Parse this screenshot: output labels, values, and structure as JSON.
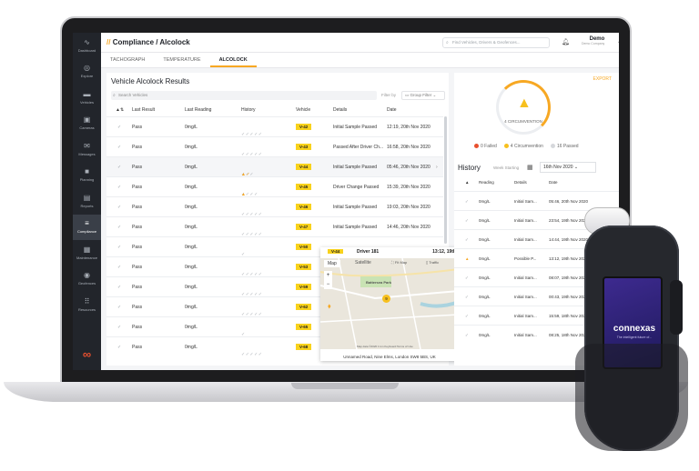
{
  "app": {
    "breadcrumb_section": "Compliance",
    "breadcrumb_page": "Alcolock",
    "search_placeholder": "Find Vehicles, Drivers & Geofences...",
    "user_name": "Demo",
    "user_company": "Demo Company"
  },
  "sidebar": {
    "items": [
      {
        "label": "Dashboard",
        "icon": "chart-line-icon"
      },
      {
        "label": "Explore",
        "icon": "compass-icon"
      },
      {
        "label": "Vehicles",
        "icon": "car-icon"
      },
      {
        "label": "Cameras",
        "icon": "camera-icon"
      },
      {
        "label": "Messages",
        "icon": "envelope-icon"
      },
      {
        "label": "Planning",
        "icon": "briefcase-icon"
      },
      {
        "label": "Reports",
        "icon": "document-icon"
      },
      {
        "label": "Compliance",
        "icon": "compliance-icon"
      },
      {
        "label": "Maintenance",
        "icon": "grid-icon"
      },
      {
        "label": "Geofences",
        "icon": "target-icon"
      },
      {
        "label": "Resources",
        "icon": "apps-icon"
      }
    ]
  },
  "tabs": [
    "TACHOGRAPH",
    "TEMPERATURE",
    "ALCOLOCK"
  ],
  "results": {
    "title": "Vehicle Alcolock Results",
    "search_placeholder": "Search Vehicles",
    "filter_label": "Filter by",
    "group_filter": "Group Filter",
    "columns": [
      "Last Result",
      "Last Reading",
      "History",
      "Vehicle",
      "Details",
      "Date"
    ],
    "rows": [
      {
        "result": "Pass",
        "reading": "0mg/L",
        "history": "✓✓✓✓✓",
        "warn": "",
        "vehicle": "V-42",
        "details": "Initial Sample Passed",
        "date": "12:19, 20th Nov 2020"
      },
      {
        "result": "Pass",
        "reading": "0mg/L",
        "history": "✓✓✓✓✓",
        "warn": "",
        "vehicle": "V-43",
        "details": "Passed After Driver Ch...",
        "date": "16:58, 20th Nov 2020"
      },
      {
        "result": "Pass",
        "reading": "0mg/L",
        "history": "✓✓✓",
        "warn": "▲✓",
        "vehicle": "V-44",
        "details": "Initial Sample Passed",
        "date": "05:46, 20th Nov 2020"
      },
      {
        "result": "Pass",
        "reading": "0mg/L",
        "history": "✓✓✓✓",
        "warn": "▲",
        "vehicle": "V-45",
        "details": "Driver Change Passed",
        "date": "15:39, 20th Nov 2020"
      },
      {
        "result": "Pass",
        "reading": "0mg/L",
        "history": "✓✓✓✓✓",
        "warn": "",
        "vehicle": "V-46",
        "details": "Initial Sample Passed",
        "date": "19:03, 20th Nov 2020"
      },
      {
        "result": "Pass",
        "reading": "0mg/L",
        "history": "✓✓✓✓✓",
        "warn": "",
        "vehicle": "V-47",
        "details": "Initial Sample Passed",
        "date": "14:46, 20th Nov 2020"
      },
      {
        "result": "Pass",
        "reading": "0mg/L",
        "history": "✓",
        "warn": "",
        "vehicle": "V-50",
        "details": "",
        "date": ""
      },
      {
        "result": "Pass",
        "reading": "0mg/L",
        "history": "✓✓✓✓✓",
        "warn": "",
        "vehicle": "V-53",
        "details": "",
        "date": ""
      },
      {
        "result": "Pass",
        "reading": "0mg/L",
        "history": "✓✓✓✓✓",
        "warn": "",
        "vehicle": "V-59",
        "details": "",
        "date": ""
      },
      {
        "result": "Pass",
        "reading": "0mg/L",
        "history": "✓✓✓✓✓",
        "warn": "",
        "vehicle": "V-62",
        "details": "",
        "date": ""
      },
      {
        "result": "Pass",
        "reading": "0mg/L",
        "history": "✓",
        "warn": "",
        "vehicle": "V-65",
        "details": "",
        "date": ""
      },
      {
        "result": "Pass",
        "reading": "0mg/L",
        "history": "✓✓✓✓✓",
        "warn": "",
        "vehicle": "V-68",
        "details": "",
        "date": ""
      }
    ]
  },
  "map_popup": {
    "vehicle": "V-44",
    "driver": "Driver 181",
    "time": "13:12, 19th",
    "map_tab": "Map",
    "satellite_tab": "Satellite",
    "fullscreen": "Fit Map",
    "traffic": "Traffic",
    "place": "Battersea Park",
    "cluster": "9",
    "attribution": "Map data ©2020   1 km   Keyboard   Terms of Use",
    "address": "Unnamed Road, Nine Elms, London SW8 5BS, UK"
  },
  "summary": {
    "export": "EXPORT",
    "gauge_label": "4 CIRCUMVENTION",
    "legend": [
      {
        "label": "0 Failed",
        "color": "#e8502f"
      },
      {
        "label": "4 Circumvention",
        "color": "#f7c01e"
      },
      {
        "label": "16 Passed",
        "color": "#d6d8dc"
      }
    ]
  },
  "history": {
    "title": "History",
    "week_label": "Week Starting",
    "week_value": "16th Nov 2020",
    "columns": [
      "Reading",
      "Details",
      "Date"
    ],
    "rows": [
      {
        "icon": "✓",
        "reading": "0mg/L",
        "details": "Initial Sam...",
        "date": "05:46, 20th Nov 2020"
      },
      {
        "icon": "✓",
        "reading": "0mg/L",
        "details": "Initial Sam...",
        "date": "23:54, 19th Nov 2020"
      },
      {
        "icon": "✓",
        "reading": "0mg/L",
        "details": "Initial Sam...",
        "date": "14:44, 19th Nov 2020"
      },
      {
        "icon": "▲",
        "reading": "0mg/L",
        "details": "Possible P...",
        "date": "13:12, 19th Nov 2020"
      },
      {
        "icon": "✓",
        "reading": "0mg/L",
        "details": "Initial Sam...",
        "date": "08:07, 19th Nov 2020"
      },
      {
        "icon": "✓",
        "reading": "0mg/L",
        "details": "Initial Sam...",
        "date": "00:43, 19th Nov 2020"
      },
      {
        "icon": "✓",
        "reading": "0mg/L",
        "details": "Initial Sam...",
        "date": "15:59, 18th Nov 2020"
      },
      {
        "icon": "✓",
        "reading": "0mg/L",
        "details": "Initial Sam...",
        "date": "08:25, 18th Nov 2020"
      }
    ]
  },
  "device": {
    "brand": "connexas",
    "tagline": "The intelligent future of..."
  },
  "colors": {
    "accent": "#f7a823",
    "vehicle_tag": "#f8d21c",
    "sidebar": "#22252b"
  }
}
